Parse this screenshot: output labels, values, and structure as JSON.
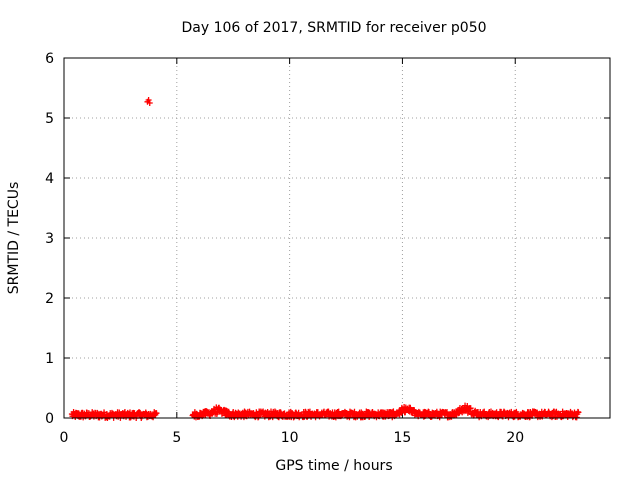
{
  "chart_data": {
    "type": "scatter",
    "title": "Day 106 of 2017, SRMTID for receiver p050",
    "xlabel": "GPS time / hours",
    "ylabel": "SRMTID / TECUs",
    "xlim": [
      0,
      24.2
    ],
    "ylim": [
      0,
      6
    ],
    "grid": true,
    "xticks": [
      0,
      5,
      10,
      15,
      20
    ],
    "xtick_labels": [
      "0",
      "5",
      "10",
      "15",
      "20"
    ],
    "yticks": [
      0,
      1,
      2,
      3,
      4,
      5,
      6
    ],
    "ytick_labels": [
      "0",
      "1",
      "2",
      "3",
      "4",
      "5",
      "6"
    ],
    "marker": "plus",
    "color": "#ff0000",
    "series": [
      {
        "name": "SRMTID",
        "segments": [
          {
            "x_start": 0.35,
            "x_end": 4.1,
            "base": 0.05,
            "jitter": 0.05
          },
          {
            "x_start": 5.7,
            "x_end": 22.8,
            "base": 0.06,
            "jitter": 0.05
          }
        ],
        "bumps": [
          {
            "x": 6.8,
            "y": 0.14
          },
          {
            "x": 15.2,
            "y": 0.16
          },
          {
            "x": 17.8,
            "y": 0.2
          }
        ],
        "outliers": [
          {
            "x": 3.7,
            "y": 5.27
          },
          {
            "x": 3.75,
            "y": 5.3
          },
          {
            "x": 3.8,
            "y": 5.25
          }
        ]
      }
    ]
  }
}
